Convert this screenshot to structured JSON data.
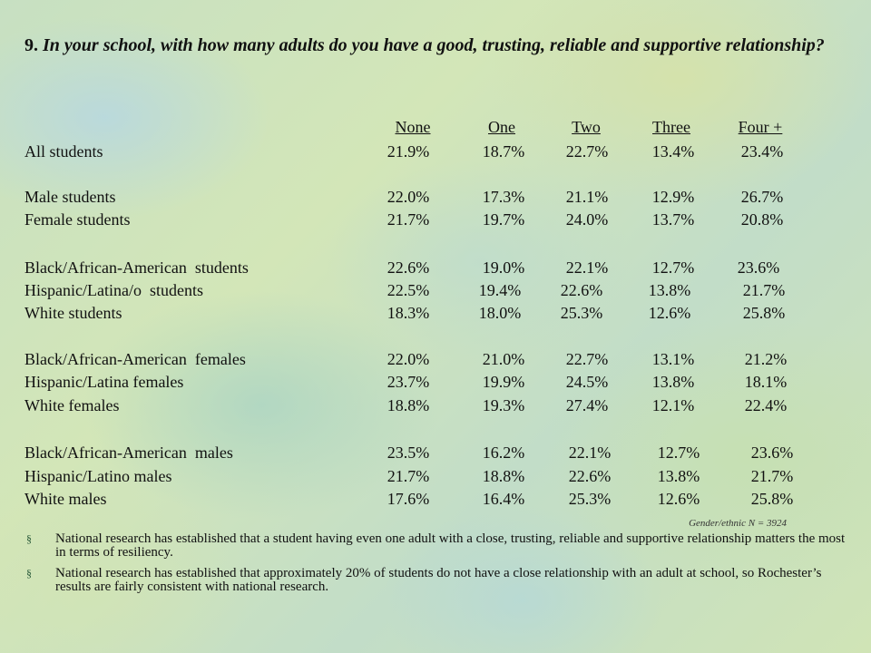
{
  "title": {
    "number": "9.",
    "question": "In your school, with how many adults do you have a good, trusting, reliable and supportive relationship?"
  },
  "columns": [
    "None",
    "One",
    "Two",
    "Three",
    "Four +"
  ],
  "rows": [
    {
      "label": "All students",
      "values": [
        "21.9%",
        "18.7%",
        "22.7%",
        "13.4%",
        "23.4%"
      ]
    },
    {
      "label": "Male students",
      "values": [
        "22.0%",
        "17.3%",
        "21.1%",
        "12.9%",
        "26.7%"
      ]
    },
    {
      "label": "Female students",
      "values": [
        "21.7%",
        "19.7%",
        "24.0%",
        "13.7%",
        "20.8%"
      ]
    },
    {
      "label": "Black/African-American  students",
      "values": [
        "22.6%",
        "19.0%",
        "22.1%",
        "12.7%",
        "23.6%"
      ]
    },
    {
      "label": "Hispanic/Latina/o  students",
      "values": [
        "22.5%",
        "19.4%",
        "22.6%",
        "13.8%",
        "21.7%"
      ]
    },
    {
      "label": "White students",
      "values": [
        "18.3%",
        "18.0%",
        "25.3%",
        "12.6%",
        "25.8%"
      ]
    },
    {
      "label": "Black/African-American  females",
      "values": [
        "22.0%",
        "21.0%",
        "22.7%",
        "13.1%",
        "21.2%"
      ]
    },
    {
      "label": "Hispanic/Latina females",
      "values": [
        "23.7%",
        "19.9%",
        "24.5%",
        "13.8%",
        "18.1%"
      ]
    },
    {
      "label": "White females",
      "values": [
        "18.8%",
        "19.3%",
        "27.4%",
        "12.1%",
        "22.4%"
      ]
    },
    {
      "label": "Black/African-American  males",
      "values": [
        "23.5%",
        "16.2%",
        "22.1%",
        "12.7%",
        "23.6%"
      ]
    },
    {
      "label": "Hispanic/Latino males",
      "values": [
        "21.7%",
        "18.8%",
        "22.6%",
        "13.8%",
        "21.7%"
      ]
    },
    {
      "label": "White males",
      "values": [
        "17.6%",
        "16.4%",
        "25.3%",
        "12.6%",
        "25.8%"
      ]
    }
  ],
  "source_note": "Gender/ethnic N = 3924",
  "bullets": [
    {
      "marker": "§",
      "text": "National research has established that a student having even one adult with a close, trusting, reliable and supportive relationship matters the most in terms of resiliency."
    },
    {
      "marker": "§",
      "text": "National research has established that approximately 20% of students do not have a close relationship with an adult at school, so Rochester’s results are fairly consistent with national research."
    }
  ]
}
